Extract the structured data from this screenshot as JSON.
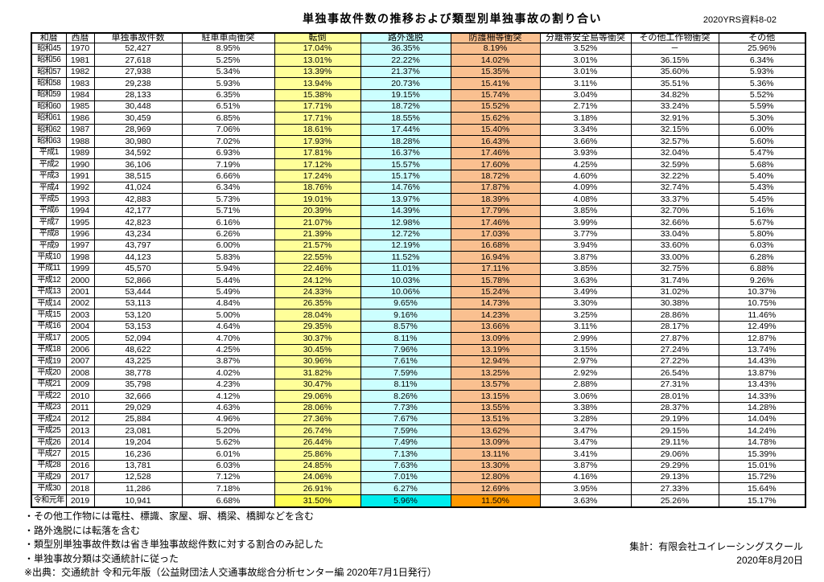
{
  "header": {
    "title": "単独事故件数の推移および類型別単独事故の割り合い",
    "doc_ref": "2020YRS資料8-02"
  },
  "table": {
    "columns": [
      "和暦",
      "西暦",
      "単独事故件数",
      "駐車車両衝突",
      "転倒",
      "路外逸脱",
      "防護柵等衝突",
      "分離帯安全島等衝突",
      "その他工作物衝突",
      "その他"
    ],
    "column_highlights": [
      "none",
      "none",
      "none",
      "none",
      "yellow",
      "cyan",
      "orange",
      "none",
      "none",
      "none"
    ],
    "rows": [
      [
        "昭和45",
        "1970",
        "52,427",
        "8.95%",
        "17.04%",
        "36.35%",
        "8.19%",
        "3.52%",
        "－",
        "25.96%"
      ],
      [
        "昭和56",
        "1981",
        "27,618",
        "5.25%",
        "13.01%",
        "22.22%",
        "14.02%",
        "3.01%",
        "36.15%",
        "6.34%"
      ],
      [
        "昭和57",
        "1982",
        "27,938",
        "5.34%",
        "13.39%",
        "21.37%",
        "15.35%",
        "3.01%",
        "35.60%",
        "5.93%"
      ],
      [
        "昭和58",
        "1983",
        "29,238",
        "5.93%",
        "13.94%",
        "20.73%",
        "15.41%",
        "3.11%",
        "35.51%",
        "5.36%"
      ],
      [
        "昭和59",
        "1984",
        "28,133",
        "6.35%",
        "15.38%",
        "19.15%",
        "15.74%",
        "3.04%",
        "34.82%",
        "5.52%"
      ],
      [
        "昭和60",
        "1985",
        "30,448",
        "6.51%",
        "17.71%",
        "18.72%",
        "15.52%",
        "2.71%",
        "33.24%",
        "5.59%"
      ],
      [
        "昭和61",
        "1986",
        "30,459",
        "6.85%",
        "17.71%",
        "18.55%",
        "15.62%",
        "3.18%",
        "32.91%",
        "5.30%"
      ],
      [
        "昭和62",
        "1987",
        "28,969",
        "7.06%",
        "18.61%",
        "17.44%",
        "15.40%",
        "3.34%",
        "32.15%",
        "6.00%"
      ],
      [
        "昭和63",
        "1988",
        "30,980",
        "7.02%",
        "17.93%",
        "18.28%",
        "16.43%",
        "3.66%",
        "32.57%",
        "5.60%"
      ],
      [
        "平成1",
        "1989",
        "34,592",
        "6.93%",
        "17.81%",
        "16.37%",
        "17.46%",
        "3.93%",
        "32.04%",
        "5.47%"
      ],
      [
        "平成2",
        "1990",
        "36,106",
        "7.19%",
        "17.12%",
        "15.57%",
        "17.60%",
        "4.25%",
        "32.59%",
        "5.68%"
      ],
      [
        "平成3",
        "1991",
        "38,515",
        "6.66%",
        "17.24%",
        "15.17%",
        "18.72%",
        "4.60%",
        "32.22%",
        "5.40%"
      ],
      [
        "平成4",
        "1992",
        "41,024",
        "6.34%",
        "18.76%",
        "14.76%",
        "17.87%",
        "4.09%",
        "32.74%",
        "5.43%"
      ],
      [
        "平成5",
        "1993",
        "42,883",
        "5.73%",
        "19.01%",
        "13.97%",
        "18.39%",
        "4.08%",
        "33.37%",
        "5.45%"
      ],
      [
        "平成6",
        "1994",
        "42,177",
        "5.71%",
        "20.39%",
        "14.39%",
        "17.79%",
        "3.85%",
        "32.70%",
        "5.16%"
      ],
      [
        "平成7",
        "1995",
        "42,823",
        "6.16%",
        "21.07%",
        "12.98%",
        "17.46%",
        "3.99%",
        "32.66%",
        "5.67%"
      ],
      [
        "平成8",
        "1996",
        "43,234",
        "6.26%",
        "21.39%",
        "12.72%",
        "17.03%",
        "3.77%",
        "33.04%",
        "5.80%"
      ],
      [
        "平成9",
        "1997",
        "43,797",
        "6.00%",
        "21.57%",
        "12.19%",
        "16.68%",
        "3.94%",
        "33.60%",
        "6.03%"
      ],
      [
        "平成10",
        "1998",
        "44,123",
        "5.83%",
        "22.55%",
        "11.52%",
        "16.94%",
        "3.87%",
        "33.00%",
        "6.28%"
      ],
      [
        "平成11",
        "1999",
        "45,570",
        "5.94%",
        "22.46%",
        "11.01%",
        "17.11%",
        "3.85%",
        "32.75%",
        "6.88%"
      ],
      [
        "平成12",
        "2000",
        "52,866",
        "5.44%",
        "24.12%",
        "10.03%",
        "15.78%",
        "3.63%",
        "31.74%",
        "9.26%"
      ],
      [
        "平成13",
        "2001",
        "53,444",
        "5.49%",
        "24.33%",
        "10.06%",
        "15.24%",
        "3.49%",
        "31.02%",
        "10.37%"
      ],
      [
        "平成14",
        "2002",
        "53,113",
        "4.84%",
        "26.35%",
        "9.65%",
        "14.73%",
        "3.30%",
        "30.38%",
        "10.75%"
      ],
      [
        "平成15",
        "2003",
        "53,120",
        "5.00%",
        "28.04%",
        "9.16%",
        "14.23%",
        "3.25%",
        "28.86%",
        "11.46%"
      ],
      [
        "平成16",
        "2004",
        "53,153",
        "4.64%",
        "29.35%",
        "8.57%",
        "13.66%",
        "3.11%",
        "28.17%",
        "12.49%"
      ],
      [
        "平成17",
        "2005",
        "52,094",
        "4.70%",
        "30.37%",
        "8.11%",
        "13.09%",
        "2.99%",
        "27.87%",
        "12.87%"
      ],
      [
        "平成18",
        "2006",
        "48,622",
        "4.25%",
        "30.45%",
        "7.96%",
        "13.19%",
        "3.15%",
        "27.24%",
        "13.74%"
      ],
      [
        "平成19",
        "2007",
        "43,225",
        "3.87%",
        "30.96%",
        "7.61%",
        "12.94%",
        "2.97%",
        "27.22%",
        "14.43%"
      ],
      [
        "平成20",
        "2008",
        "38,778",
        "4.02%",
        "31.82%",
        "7.59%",
        "13.25%",
        "2.92%",
        "26.54%",
        "13.87%"
      ],
      [
        "平成21",
        "2009",
        "35,798",
        "4.23%",
        "30.47%",
        "8.11%",
        "13.57%",
        "2.88%",
        "27.31%",
        "13.43%"
      ],
      [
        "平成22",
        "2010",
        "32,666",
        "4.12%",
        "29.06%",
        "8.26%",
        "13.15%",
        "3.06%",
        "28.01%",
        "14.33%"
      ],
      [
        "平成23",
        "2011",
        "29,029",
        "4.63%",
        "28.06%",
        "7.73%",
        "13.55%",
        "3.38%",
        "28.37%",
        "14.28%"
      ],
      [
        "平成24",
        "2012",
        "25,884",
        "4.96%",
        "27.36%",
        "7.67%",
        "13.51%",
        "3.28%",
        "29.19%",
        "14.04%"
      ],
      [
        "平成25",
        "2013",
        "23,081",
        "5.20%",
        "26.74%",
        "7.59%",
        "13.62%",
        "3.47%",
        "29.15%",
        "14.24%"
      ],
      [
        "平成26",
        "2014",
        "19,204",
        "5.62%",
        "26.44%",
        "7.49%",
        "13.09%",
        "3.47%",
        "29.11%",
        "14.78%"
      ],
      [
        "平成27",
        "2015",
        "16,236",
        "6.01%",
        "25.86%",
        "7.13%",
        "13.11%",
        "3.41%",
        "29.06%",
        "15.39%"
      ],
      [
        "平成28",
        "2016",
        "13,781",
        "6.03%",
        "24.85%",
        "7.63%",
        "13.30%",
        "3.87%",
        "29.29%",
        "15.01%"
      ],
      [
        "平成29",
        "2017",
        "12,528",
        "7.12%",
        "24.06%",
        "7.01%",
        "12.80%",
        "4.16%",
        "29.13%",
        "15.72%"
      ],
      [
        "平成30",
        "2018",
        "11,286",
        "7.18%",
        "26.91%",
        "6.27%",
        "12.69%",
        "3.95%",
        "27.33%",
        "15.64%"
      ],
      [
        "令和元年",
        "2019",
        "10,941",
        "6.68%",
        "31.50%",
        "5.96%",
        "11.50%",
        "3.63%",
        "25.26%",
        "15.17%"
      ]
    ]
  },
  "notes": [
    "・その他工作物には電柱、標識、家屋、塀、橋梁、橋脚などを含む",
    "・路外逸脱には転落を含む",
    "・類型別単独事故件数は省き単独事故総件数に対する割合のみ記した",
    "・単独事故分類は交通統計に従った",
    "※出典：交通統計 令和元年版（公益財団法人交通事故総合分析センター編 2020年7月1日発行）"
  ],
  "footer": {
    "credit": "集計：有限会社ユイレーシングスクール",
    "date": "2020年8月20日"
  },
  "colors": {
    "yellow": "#FFFF99",
    "cyan": "#CCFFFF",
    "orange": "#FAC090",
    "yellow_bright": "#FFFF55",
    "cyan_bright": "#00EEEE",
    "orange_bright": "#FF9900"
  }
}
